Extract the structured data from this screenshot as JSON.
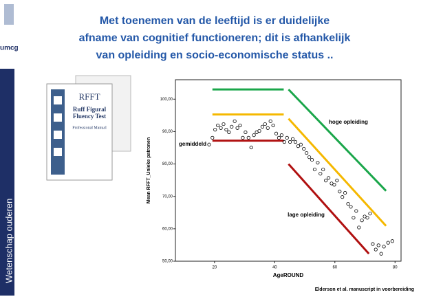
{
  "slide": {
    "logo": "umcg",
    "title_lines": [
      "Met toenemen van de leeftijd is er duidelijke",
      "afname van cognitief functioneren; dit is afhankelijk",
      "van opleiding en socio-economische status .."
    ],
    "sidebar": "Wetenschap ouderen",
    "book": {
      "title": "RFFT",
      "subtitle_lines": [
        "Ruff Figural",
        "Fluency Test"
      ],
      "manual": "Professional Manual"
    },
    "citation": "Elderson et  al. manuscript in voorbereiding"
  },
  "chart_data": {
    "type": "scatter",
    "xlabel": "AgeROUND",
    "ylabel": "Mean RFFT_Unieke patronen",
    "xlim": [
      7,
      82
    ],
    "ylim": [
      50,
      106
    ],
    "xticks": [
      20,
      40,
      60,
      80
    ],
    "yticks": [
      {
        "value": 50,
        "label": "50,00"
      },
      {
        "value": 60,
        "label": "60,00"
      },
      {
        "value": 70,
        "label": "70,00"
      },
      {
        "value": 80,
        "label": "80,00"
      },
      {
        "value": 90,
        "label": "90,00"
      },
      {
        "value": 100,
        "label": "100,00"
      }
    ],
    "marker_color": "#000000",
    "x": [
      18.2,
      19.3,
      20.2,
      21.1,
      22.1,
      23.0,
      23.9,
      24.8,
      25.7,
      26.7,
      27.6,
      28.5,
      29.4,
      30.3,
      31.3,
      32.2,
      33.1,
      34.0,
      34.9,
      35.9,
      36.8,
      37.7,
      38.6,
      39.5,
      40.5,
      41.4,
      42.3,
      43.2,
      44.1,
      45.1,
      46.0,
      46.9,
      47.8,
      48.7,
      49.7,
      50.6,
      51.5,
      52.4,
      53.3,
      54.3,
      55.2,
      56.1,
      57.0,
      57.9,
      58.9,
      59.8,
      60.7,
      61.6,
      62.5,
      63.4,
      64.4,
      65.3,
      66.2,
      67.1,
      68.0,
      69.0,
      69.9,
      70.8,
      71.7,
      72.6,
      73.6,
      74.5,
      75.4,
      76.3,
      77.7,
      79.1
    ],
    "y": [
      86.0,
      88.1,
      90.6,
      91.9,
      91.1,
      92.3,
      90.6,
      89.8,
      91.5,
      93.2,
      91.1,
      91.9,
      88.1,
      89.8,
      88.1,
      85.1,
      88.9,
      89.8,
      90.2,
      91.5,
      92.3,
      91.1,
      93.2,
      91.9,
      89.4,
      88.1,
      88.9,
      86.8,
      88.1,
      86.8,
      87.7,
      86.8,
      85.5,
      86.0,
      84.7,
      83.4,
      82.1,
      81.3,
      78.3,
      80.4,
      77.0,
      78.3,
      74.9,
      75.7,
      74.0,
      73.6,
      74.9,
      71.5,
      69.8,
      71.1,
      67.7,
      66.8,
      63.4,
      65.5,
      60.4,
      62.6,
      63.8,
      63.4,
      64.7,
      55.3,
      53.6,
      54.9,
      52.3,
      54.5,
      55.7,
      56.2
    ],
    "lines": [
      {
        "color": "#1aa64a",
        "x": [
          19.3,
          43
        ],
        "y": [
          103,
          103
        ]
      },
      {
        "color": "#1aa64a",
        "x": [
          44.6,
          77
        ],
        "y": [
          103,
          71.7
        ]
      },
      {
        "color": "#f5b800",
        "x": [
          19.3,
          43
        ],
        "y": [
          95.3,
          95.3
        ]
      },
      {
        "color": "#f5b800",
        "x": [
          44.6,
          77
        ],
        "y": [
          94,
          60.9
        ]
      },
      {
        "color": "#b01010",
        "x": [
          19.3,
          43
        ],
        "y": [
          87.2,
          87.2
        ]
      },
      {
        "color": "#b01010",
        "x": [
          44.6,
          71.3
        ],
        "y": [
          80,
          52.3
        ]
      }
    ],
    "annotations": [
      "gemiddeld",
      "hoge opleiding",
      "lage opleiding"
    ]
  }
}
